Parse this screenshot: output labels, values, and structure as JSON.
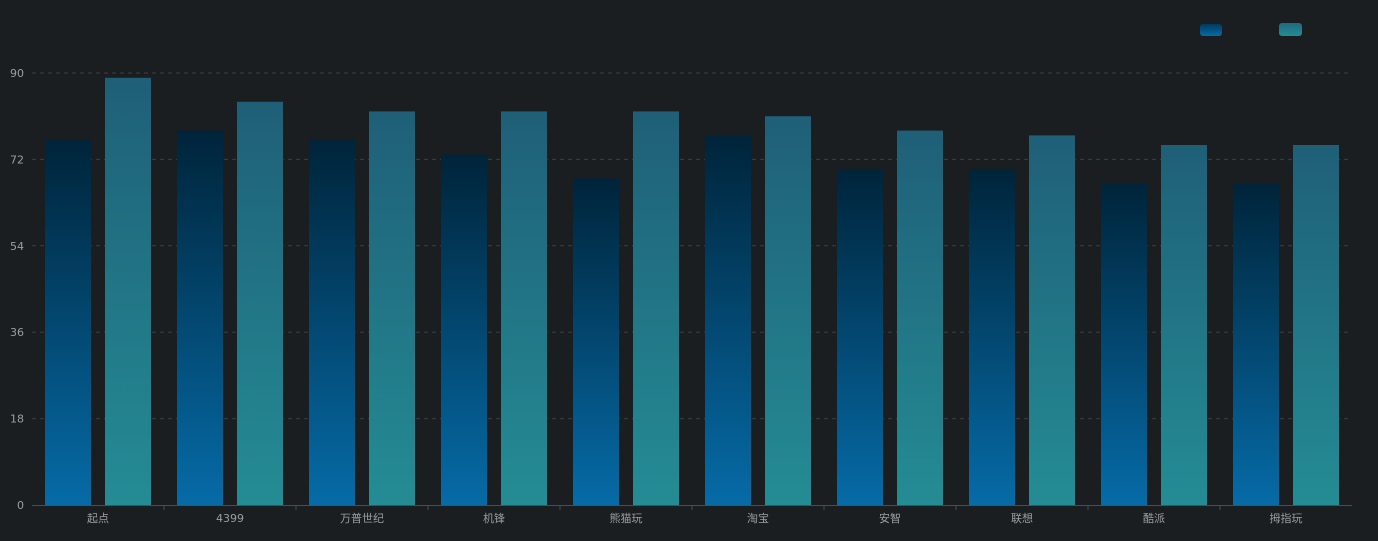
{
  "chart_data": {
    "type": "bar",
    "categories": [
      "起点",
      "4399",
      "万普世纪",
      "机锋",
      "熊猫玩",
      "淘宝",
      "安智",
      "联想",
      "酷派",
      "拇指玩"
    ],
    "series": [
      {
        "values": [
          76,
          78,
          76,
          73,
          68,
          77,
          70,
          70,
          67,
          67
        ]
      },
      {
        "values": [
          89,
          84,
          82,
          82,
          82,
          81,
          78,
          77,
          75,
          75
        ]
      }
    ],
    "y_ticks": [
      "0",
      "18",
      "36",
      "54",
      "72",
      "90"
    ],
    "ylim": [
      0,
      90
    ],
    "grid": true,
    "legend_position": "top-right",
    "colors": {
      "background": "#1b1e21",
      "series1_top": "#00243a",
      "series1_bottom": "#066ba7",
      "series2_top": "#1f5f78",
      "series2_bottom": "#248c94",
      "axis_text": "#9a9ea3",
      "grid": "#3b3f44",
      "axis_line": "#4a4e53"
    }
  }
}
